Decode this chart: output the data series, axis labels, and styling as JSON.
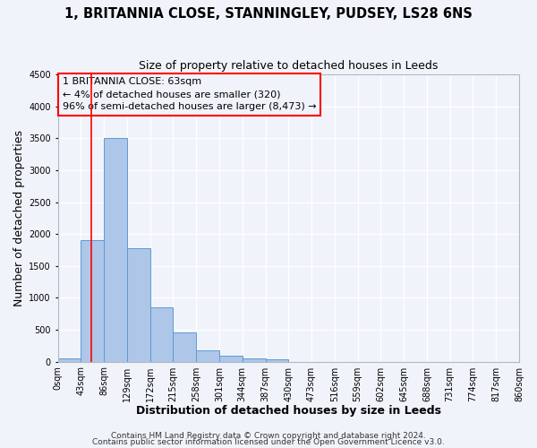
{
  "title": "1, BRITANNIA CLOSE, STANNINGLEY, PUDSEY, LS28 6NS",
  "subtitle": "Size of property relative to detached houses in Leeds",
  "xlabel": "Distribution of detached houses by size in Leeds",
  "ylabel": "Number of detached properties",
  "bar_left_edges": [
    0,
    43,
    86,
    129,
    172,
    215,
    258,
    301,
    344,
    387,
    430,
    473,
    516,
    559,
    602,
    645,
    688,
    731,
    774,
    817
  ],
  "bar_heights": [
    50,
    1900,
    3500,
    1775,
    850,
    460,
    175,
    90,
    55,
    30,
    0,
    0,
    0,
    0,
    0,
    0,
    0,
    0,
    0,
    0
  ],
  "bin_width": 43,
  "bar_color": "#aec6e8",
  "bar_edge_color": "#5b9bd5",
  "tick_labels": [
    "0sqm",
    "43sqm",
    "86sqm",
    "129sqm",
    "172sqm",
    "215sqm",
    "258sqm",
    "301sqm",
    "344sqm",
    "387sqm",
    "430sqm",
    "473sqm",
    "516sqm",
    "559sqm",
    "602sqm",
    "645sqm",
    "688sqm",
    "731sqm",
    "774sqm",
    "817sqm",
    "860sqm"
  ],
  "ylim": [
    0,
    4500
  ],
  "yticks": [
    0,
    500,
    1000,
    1500,
    2000,
    2500,
    3000,
    3500,
    4000,
    4500
  ],
  "red_line_x": 63,
  "annotation_title": "1 BRITANNIA CLOSE: 63sqm",
  "annotation_line1": "← 4% of detached houses are smaller (320)",
  "annotation_line2": "96% of semi-detached houses are larger (8,473) →",
  "footer1": "Contains HM Land Registry data © Crown copyright and database right 2024.",
  "footer2": "Contains public sector information licensed under the Open Government Licence v3.0.",
  "background_color": "#f0f4fa",
  "grid_color": "#d0d8e8",
  "title_fontsize": 10.5,
  "subtitle_fontsize": 9,
  "axis_label_fontsize": 9,
  "tick_fontsize": 7,
  "annotation_fontsize": 8,
  "footer_fontsize": 6.5
}
